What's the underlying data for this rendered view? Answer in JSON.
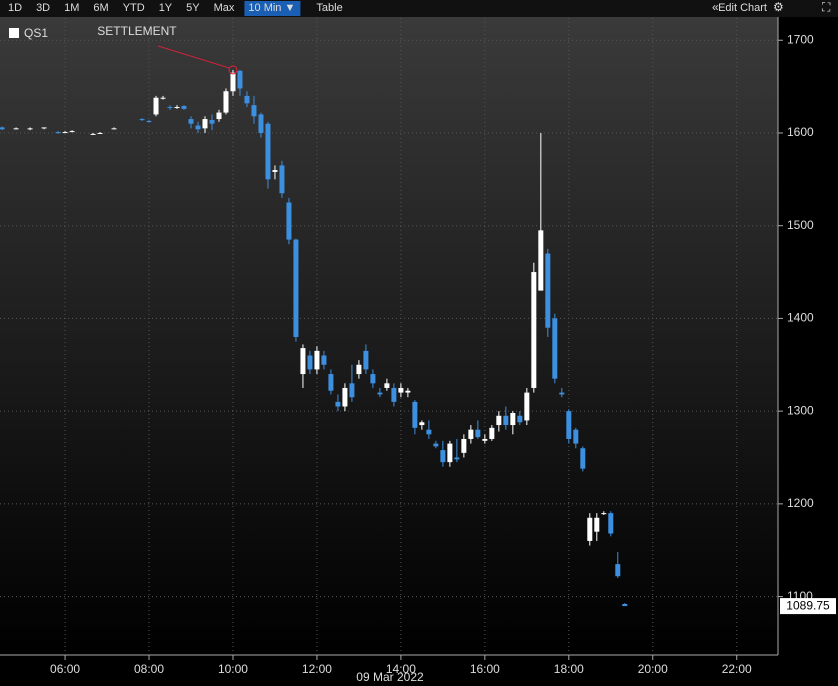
{
  "toolbar": {
    "ranges": [
      "1D",
      "3D",
      "1M",
      "6M",
      "YTD",
      "1Y",
      "5Y",
      "Max"
    ],
    "interval": "10 Min ▼",
    "table": "Table",
    "edit": "Edit Chart"
  },
  "chart_data": {
    "type": "candlestick",
    "annotation": "SETTLEMENT",
    "xlabel": "09 Mar 2022",
    "up_color": "#ffffff",
    "down_color": "#3d8fe0",
    "grid": true,
    "xlim": [
      267,
      1379
    ],
    "ylim": [
      1037,
      1724
    ],
    "xticks": [
      {
        "value": 360,
        "label": "06:00"
      },
      {
        "value": 480,
        "label": "08:00"
      },
      {
        "value": 600,
        "label": "10:00"
      },
      {
        "value": 720,
        "label": "12:00"
      },
      {
        "value": 840,
        "label": "14:00"
      },
      {
        "value": 960,
        "label": "16:00"
      },
      {
        "value": 1080,
        "label": "18:00"
      },
      {
        "value": 1200,
        "label": "20:00"
      },
      {
        "value": 1320,
        "label": "22:00"
      }
    ],
    "yticks": [
      1100,
      1200,
      1300,
      1400,
      1500,
      1600,
      1700
    ],
    "series": [
      {
        "name": "QS1",
        "x": [
          270,
          290,
          310,
          330,
          350,
          360,
          370,
          400,
          410,
          430,
          470,
          480,
          490,
          500,
          510,
          520,
          530,
          540,
          550,
          560,
          570,
          580,
          590,
          600,
          610,
          620,
          630,
          640,
          650,
          660,
          670,
          680,
          690,
          700,
          710,
          720,
          730,
          740,
          750,
          760,
          770,
          780,
          790,
          800,
          810,
          820,
          830,
          840,
          850,
          860,
          870,
          880,
          890,
          900,
          910,
          920,
          930,
          940,
          950,
          960,
          970,
          980,
          990,
          1000,
          1010,
          1020,
          1030,
          1040,
          1050,
          1060,
          1070,
          1080,
          1090,
          1100,
          1110,
          1120,
          1130,
          1140,
          1150,
          1160
        ],
        "open": [
          1606,
          1605,
          1604,
          1605,
          1601,
          1601,
          1602,
          1599,
          1600,
          1605,
          1615,
          1613,
          1620,
          1638,
          1628,
          1627,
          1629,
          1615,
          1608,
          1605,
          1614,
          1615,
          1622,
          1645,
          1667,
          1640,
          1630,
          1620,
          1610,
          1558,
          1565,
          1525,
          1485,
          1340,
          1360,
          1345,
          1360,
          1340,
          1310,
          1305,
          1330,
          1340,
          1365,
          1340,
          1320,
          1325,
          1325,
          1320,
          1320,
          1310,
          1285,
          1280,
          1265,
          1258,
          1245,
          1250,
          1255,
          1270,
          1280,
          1268,
          1270,
          1285,
          1295,
          1285,
          1295,
          1290,
          1325,
          1430,
          1470,
          1400,
          1320,
          1300,
          1280,
          1260,
          1160,
          1170,
          1190,
          1190,
          1135,
          1092
        ],
        "high": [
          1607,
          1606,
          1606,
          1606,
          1602,
          1602,
          1603,
          1600,
          1601,
          1606,
          1616,
          1614,
          1640,
          1640,
          1630,
          1630,
          1630,
          1618,
          1612,
          1618,
          1620,
          1625,
          1648,
          1668,
          1668,
          1645,
          1640,
          1622,
          1612,
          1565,
          1570,
          1530,
          1486,
          1372,
          1365,
          1370,
          1365,
          1345,
          1318,
          1330,
          1350,
          1355,
          1372,
          1345,
          1325,
          1335,
          1330,
          1330,
          1325,
          1312,
          1290,
          1290,
          1268,
          1268,
          1268,
          1270,
          1275,
          1285,
          1290,
          1275,
          1285,
          1300,
          1305,
          1300,
          1300,
          1325,
          1460,
          1600,
          1475,
          1405,
          1325,
          1302,
          1282,
          1262,
          1190,
          1190,
          1192,
          1192,
          1148,
          1093
        ],
        "low": [
          1603,
          1604,
          1603,
          1604,
          1599,
          1600,
          1601,
          1598,
          1599,
          1604,
          1613,
          1611,
          1618,
          1636,
          1625,
          1626,
          1625,
          1605,
          1600,
          1600,
          1603,
          1612,
          1620,
          1640,
          1640,
          1628,
          1610,
          1595,
          1540,
          1550,
          1530,
          1480,
          1375,
          1325,
          1340,
          1340,
          1345,
          1318,
          1300,
          1300,
          1310,
          1335,
          1340,
          1325,
          1315,
          1322,
          1305,
          1315,
          1315,
          1275,
          1280,
          1270,
          1260,
          1240,
          1240,
          1245,
          1250,
          1265,
          1270,
          1265,
          1268,
          1278,
          1280,
          1275,
          1285,
          1285,
          1320,
          1430,
          1380,
          1330,
          1315,
          1265,
          1260,
          1235,
          1155,
          1160,
          1188,
          1165,
          1120,
          1090
        ],
        "close": [
          1604,
          1605,
          1605,
          1606,
          1600,
          1601,
          1602,
          1599,
          1600,
          1605,
          1614,
          1612,
          1638,
          1638,
          1627,
          1628,
          1626,
          1610,
          1604,
          1615,
          1610,
          1622,
          1645,
          1665,
          1648,
          1632,
          1618,
          1600,
          1550,
          1560,
          1535,
          1485,
          1380,
          1368,
          1345,
          1365,
          1350,
          1322,
          1305,
          1325,
          1315,
          1350,
          1345,
          1330,
          1318,
          1330,
          1310,
          1325,
          1322,
          1282,
          1288,
          1275,
          1262,
          1245,
          1265,
          1248,
          1270,
          1280,
          1272,
          1270,
          1282,
          1295,
          1285,
          1298,
          1288,
          1320,
          1450,
          1495,
          1390,
          1335,
          1318,
          1270,
          1265,
          1238,
          1185,
          1185,
          1190,
          1168,
          1122,
          1089.75
        ]
      }
    ]
  }
}
